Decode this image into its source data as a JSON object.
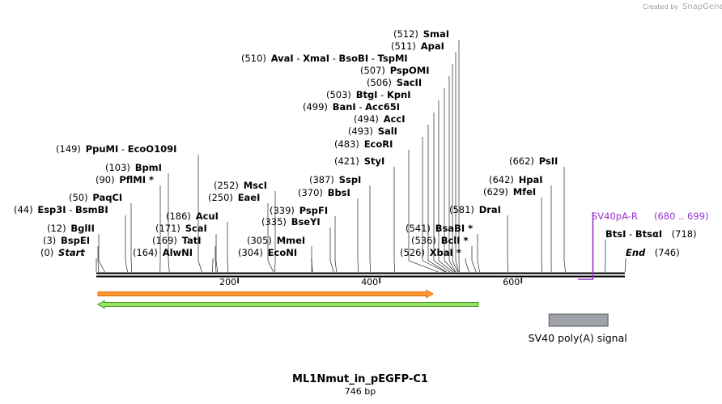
{
  "credit": {
    "prefix": "Created by",
    "brand": "SnapGene"
  },
  "title": "ML1Nmut_in_pEGFP-C1",
  "length_text": "746 bp",
  "sequence": {
    "start": 0,
    "end": 746
  },
  "ticks": [
    200,
    400,
    600
  ],
  "sites": [
    {
      "id": "smai",
      "pos": "(512)",
      "parts": [
        "SmaI"
      ],
      "cut": 512
    },
    {
      "id": "apai",
      "pos": "(511)",
      "parts": [
        "ApaI"
      ],
      "cut": 511
    },
    {
      "id": "avai",
      "pos": "(510)",
      "parts": [
        "AvaI",
        "XmaI",
        "BsoBI",
        "TspMI"
      ],
      "cut": 510
    },
    {
      "id": "psp",
      "pos": "(507)",
      "parts": [
        "PspOMI"
      ],
      "cut": 507
    },
    {
      "id": "sacii",
      "pos": "(506)",
      "parts": [
        "SacII"
      ],
      "cut": 506
    },
    {
      "id": "btgi",
      "pos": "(503)",
      "parts": [
        "BtgI",
        "KpnI"
      ],
      "cut": 503
    },
    {
      "id": "bani",
      "pos": "(499)",
      "parts": [
        "BanI",
        "Acc65I"
      ],
      "cut": 499
    },
    {
      "id": "acci",
      "pos": "(494)",
      "parts": [
        "AccI"
      ],
      "cut": 494
    },
    {
      "id": "sali",
      "pos": "(493)",
      "parts": [
        "SalI"
      ],
      "cut": 493
    },
    {
      "id": "ecori",
      "pos": "(483)",
      "parts": [
        "EcoRI"
      ],
      "cut": 483
    },
    {
      "id": "styi",
      "pos": "(421)",
      "parts": [
        "StyI"
      ],
      "cut": 421
    },
    {
      "id": "sspi",
      "pos": "(387)",
      "parts": [
        "SspI"
      ],
      "cut": 387
    },
    {
      "id": "bbsi",
      "pos": "(370)",
      "parts": [
        "BbsI"
      ],
      "cut": 370
    },
    {
      "id": "ppumi",
      "pos": "(149)",
      "parts": [
        "PpuMI",
        "EcoO109I"
      ],
      "cut": 149
    },
    {
      "id": "bpmi",
      "pos": "(103)",
      "parts": [
        "BpmI"
      ],
      "cut": 103
    },
    {
      "id": "pflmi",
      "pos": "(90)",
      "parts": [
        "PflMI *"
      ],
      "cut": 90
    },
    {
      "id": "msci",
      "pos": "(252)",
      "parts": [
        "MscI"
      ],
      "cut": 252
    },
    {
      "id": "eaei",
      "pos": "(250)",
      "parts": [
        "EaeI"
      ],
      "cut": 250
    },
    {
      "id": "paqci",
      "pos": "(50)",
      "parts": [
        "PaqCI"
      ],
      "cut": 50
    },
    {
      "id": "esp3i",
      "pos": "(44)",
      "parts": [
        "Esp3I",
        "BsmBI"
      ],
      "cut": 44
    },
    {
      "id": "pspfi",
      "pos": "(339)",
      "parts": [
        "PspFI"
      ],
      "cut": 339
    },
    {
      "id": "acui",
      "pos": "(186)",
      "parts": [
        "AcuI"
      ],
      "cut": 186
    },
    {
      "id": "bseyi",
      "pos": "(335)",
      "parts": [
        "BseYI"
      ],
      "cut": 335
    },
    {
      "id": "bglii",
      "pos": "(12)",
      "parts": [
        "BglII"
      ],
      "cut": 12
    },
    {
      "id": "scai",
      "pos": "(171)",
      "parts": [
        "ScaI"
      ],
      "cut": 171
    },
    {
      "id": "bspei",
      "pos": "(3)",
      "parts": [
        "BspEI"
      ],
      "cut": 3
    },
    {
      "id": "tati",
      "pos": "(169)",
      "parts": [
        "TatI"
      ],
      "cut": 169
    },
    {
      "id": "mmei",
      "pos": "(305)",
      "parts": [
        "MmeI"
      ],
      "cut": 305
    },
    {
      "id": "start",
      "pos": "(0)",
      "parts": [
        "Start"
      ],
      "cut": 0,
      "italic": true
    },
    {
      "id": "alwni",
      "pos": "(164)",
      "parts": [
        "AlwNI"
      ],
      "cut": 164
    },
    {
      "id": "econi",
      "pos": "(304)",
      "parts": [
        "EcoNI"
      ],
      "cut": 304
    },
    {
      "id": "hpsi",
      "pos": "(662)",
      "parts": [
        "PsII"
      ],
      "cut": 662
    },
    {
      "id": "hpai",
      "pos": "(642)",
      "parts": [
        "HpaI"
      ],
      "cut": 642
    },
    {
      "id": "mfei",
      "pos": "(629)",
      "parts": [
        "MfeI"
      ],
      "cut": 629
    },
    {
      "id": "drai",
      "pos": "(581)",
      "parts": [
        "DraI"
      ],
      "cut": 581
    },
    {
      "id": "bsabi",
      "pos": "(541)",
      "parts": [
        "BsaBI *"
      ],
      "cut": 541
    },
    {
      "id": "bcli",
      "pos": "(536)",
      "parts": [
        "BclI *"
      ],
      "cut": 536
    },
    {
      "id": "xbai",
      "pos": "(526)",
      "parts": [
        "XbaI *"
      ],
      "cut": 526
    },
    {
      "id": "btsi",
      "pos": "(718)",
      "parts": [
        "BtsI",
        "BtsαI"
      ],
      "cut": 718,
      "posAfter": true
    },
    {
      "id": "end",
      "pos": "(746)",
      "parts": [
        "End"
      ],
      "cut": 746,
      "italic": true,
      "posAfter": true
    }
  ],
  "primer": {
    "name": "SV40pA-R",
    "range": "(680 .. 699)",
    "from": 680,
    "to": 699,
    "color": "#9933cc"
  },
  "features": [
    {
      "id": "orange-arrow",
      "from": 0,
      "to": 475,
      "dir": "right",
      "color": "#ff9933",
      "edge": "#e06a00"
    },
    {
      "id": "green-arrow",
      "from": 0,
      "to": 539,
      "dir": "left",
      "color": "#99e066",
      "edge": "#3a9a1a"
    }
  ],
  "polyA": {
    "label": "SV40 poly(A) signal",
    "from": 640,
    "to": 722,
    "color": "#a0a4aa"
  }
}
